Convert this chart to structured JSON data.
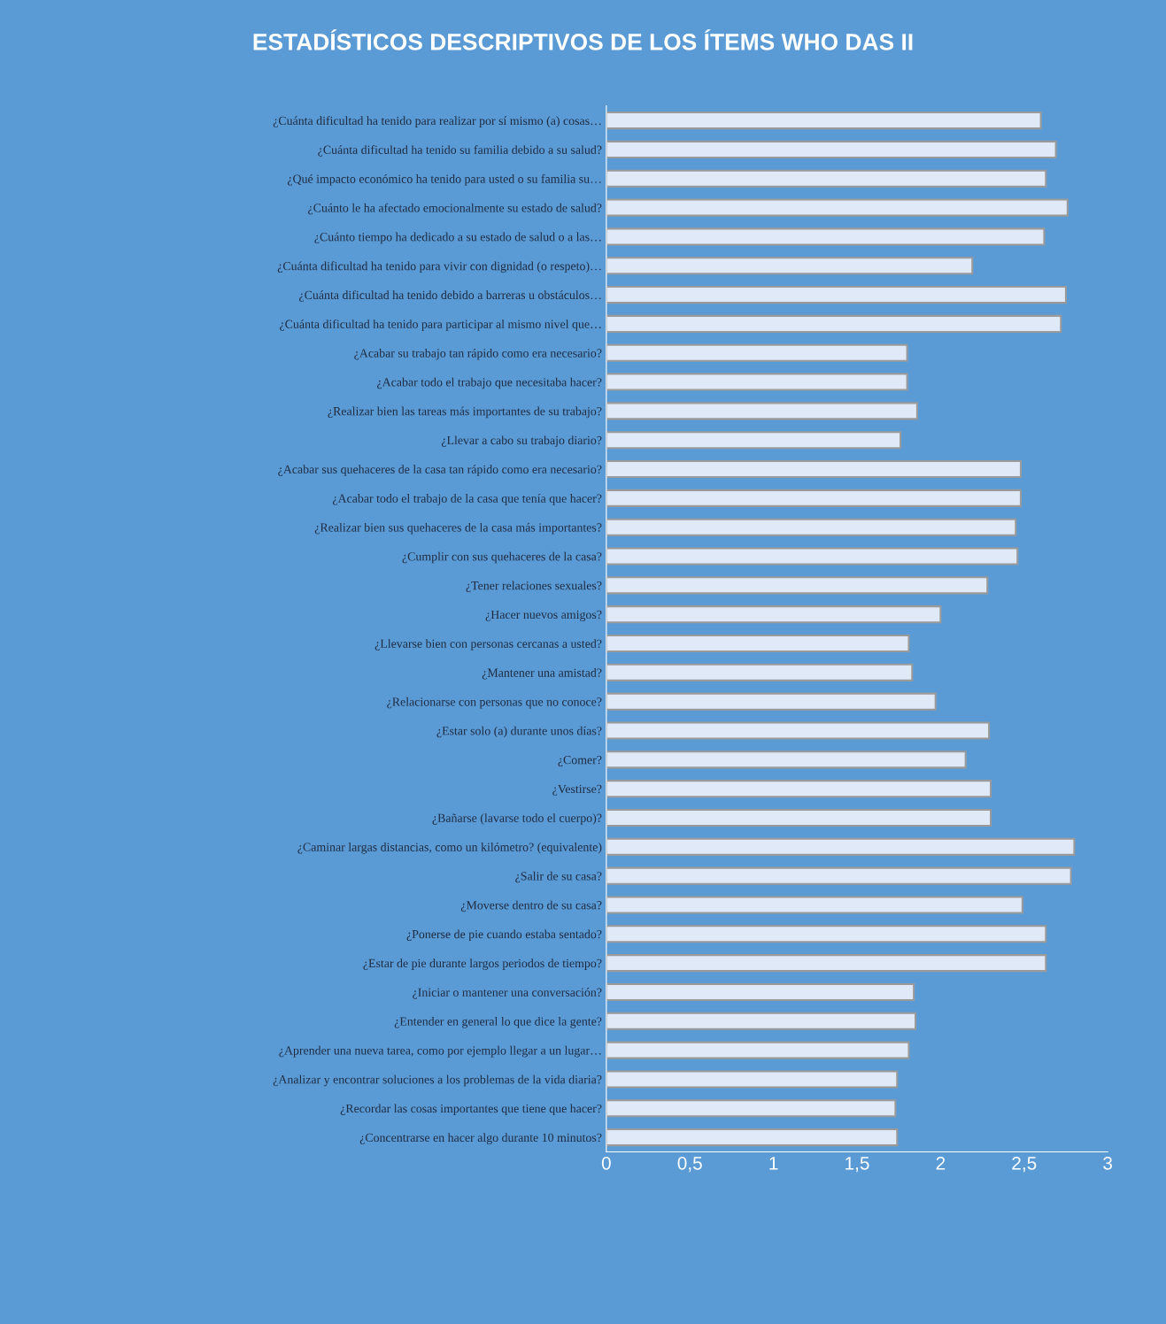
{
  "chart_data": {
    "type": "bar",
    "orientation": "horizontal",
    "title": "ESTADÍSTICOS DESCRIPTIVOS DE LOS ÍTEMS WHO DAS II",
    "categories": [
      "¿Cuánta dificultad ha tenido para realizar por sí mismo (a) cosas…",
      "¿Cuánta dificultad ha tenido su familia debido a su salud?",
      "¿Qué impacto económico ha tenido para usted o su familia su…",
      "¿Cuánto le ha afectado emocionalmente su estado de salud?",
      "¿Cuánto tiempo ha dedicado a su estado de salud o a las…",
      "¿Cuánta dificultad ha tenido para vivir con dignidad (o respeto)…",
      "¿Cuánta dificultad ha tenido debido a barreras u obstáculos…",
      "¿Cuánta dificultad ha tenido para participar al mismo nivel que…",
      "¿Acabar su trabajo tan rápido como era necesario?",
      "¿Acabar todo el trabajo que necesitaba hacer?",
      "¿Realizar bien las tareas más importantes de su trabajo?",
      "¿Llevar a cabo su trabajo diario?",
      "¿Acabar sus quehaceres de la casa tan rápido como era necesario?",
      "¿Acabar todo el trabajo de la casa que tenía que hacer?",
      "¿Realizar bien sus quehaceres de la casa más importantes?",
      "¿Cumplir con sus quehaceres de la casa?",
      "¿Tener relaciones sexuales?",
      "¿Hacer nuevos amigos?",
      "¿Llevarse bien con personas cercanas a usted?",
      "¿Mantener una amistad?",
      "¿Relacionarse con personas que no conoce?",
      "¿Estar solo (a) durante unos días?",
      "¿Comer?",
      "¿Vestirse?",
      "¿Bañarse (lavarse todo el cuerpo)?",
      "¿Caminar largas distancias, como un kilómetro? (equivalente)",
      "¿Salir de su casa?",
      "¿Moverse dentro de su casa?",
      "¿Ponerse de pie cuando estaba sentado?",
      "¿Estar de pie durante largos periodos de tiempo?",
      "¿Iniciar o mantener una conversación?",
      "¿Entender en general lo que dice la gente?",
      "¿Aprender una nueva tarea, como por ejemplo llegar a un lugar…",
      "¿Analizar y encontrar soluciones a los problemas de la vida diaria?",
      "¿Recordar las cosas importantes que tiene que hacer?",
      "¿Concentrarse en hacer algo durante 10 minutos?"
    ],
    "values": [
      2.6,
      2.69,
      2.63,
      2.76,
      2.62,
      2.19,
      2.75,
      2.72,
      1.8,
      1.8,
      1.86,
      1.76,
      2.48,
      2.48,
      2.45,
      2.46,
      2.28,
      2.0,
      1.81,
      1.83,
      1.97,
      2.29,
      2.15,
      2.3,
      2.3,
      2.8,
      2.78,
      2.49,
      2.63,
      2.63,
      1.84,
      1.85,
      1.81,
      1.74,
      1.73,
      1.74
    ],
    "color": "#dfe9f7",
    "xlim": [
      0,
      3
    ],
    "xticks": [
      0,
      {
        "value": 0.5,
        "label": "0,5"
      },
      1,
      {
        "value": 1.5,
        "label": "1,5"
      },
      2,
      {
        "value": 2.5,
        "label": "2,5"
      },
      3
    ]
  }
}
